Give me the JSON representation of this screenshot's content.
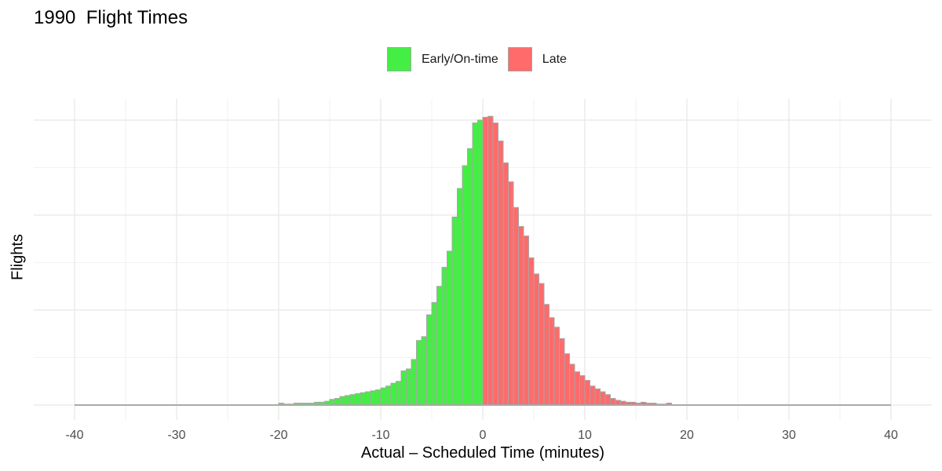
{
  "chart_data": {
    "type": "bar",
    "title": "1990  Flight Times",
    "xlabel": "Actual – Scheduled Time (minutes)",
    "ylabel": "Flights",
    "xlim": [
      -44,
      44
    ],
    "ylim": [
      0,
      3.05
    ],
    "x_ticks": [
      -40,
      -30,
      -20,
      -10,
      0,
      10,
      20,
      30,
      40
    ],
    "x_tick_labels": [
      "-40",
      "-30",
      "-20",
      "-10",
      "0",
      "10",
      "20",
      "30",
      "40"
    ],
    "y_axis_labels_shown": false,
    "grid": true,
    "bin_width": 0.5,
    "legend": {
      "position": "top",
      "entries": [
        {
          "label": "Early/On-time",
          "color": "#44ee44"
        },
        {
          "label": "Late",
          "color": "#ff6b6b"
        }
      ]
    },
    "series": [
      {
        "name": "Early/On-time",
        "color": "#44ee44",
        "x": [
          -20,
          -19.5,
          -19,
          -18.5,
          -18,
          -17.5,
          -17,
          -16.5,
          -16,
          -15.5,
          -15,
          -14.5,
          -14,
          -13.5,
          -13,
          -12.5,
          -12,
          -11.5,
          -11,
          -10.5,
          -10,
          -9.5,
          -9,
          -8.5,
          -8,
          -7.5,
          -7,
          -6.5,
          -6,
          -5.5,
          -5,
          -4.5,
          -4,
          -3.5,
          -3,
          -2.5,
          -2,
          -1.5,
          -1,
          -0.5
        ],
        "values": [
          0.02,
          0.01,
          0.01,
          0.02,
          0.02,
          0.02,
          0.02,
          0.03,
          0.03,
          0.04,
          0.06,
          0.07,
          0.09,
          0.1,
          0.11,
          0.12,
          0.13,
          0.14,
          0.15,
          0.16,
          0.18,
          0.2,
          0.23,
          0.25,
          0.36,
          0.38,
          0.48,
          0.68,
          0.72,
          0.95,
          1.08,
          1.25,
          1.45,
          1.62,
          1.98,
          2.28,
          2.52,
          2.7,
          2.97,
          3.0
        ]
      },
      {
        "name": "Late",
        "color": "#ff6b6b",
        "x": [
          0,
          0.5,
          1,
          1.5,
          2,
          2.5,
          3,
          3.5,
          4,
          4.5,
          5,
          5.5,
          6,
          6.5,
          7,
          7.5,
          8,
          8.5,
          9,
          9.5,
          10,
          10.5,
          11,
          11.5,
          12,
          12.5,
          13,
          13.5,
          14,
          14.5,
          15,
          15.5,
          16,
          16.5,
          17,
          17.5,
          18
        ],
        "values": [
          3.03,
          3.04,
          2.97,
          2.78,
          2.55,
          2.35,
          2.08,
          1.88,
          1.78,
          1.55,
          1.38,
          1.28,
          1.06,
          0.92,
          0.82,
          0.7,
          0.54,
          0.43,
          0.35,
          0.31,
          0.26,
          0.2,
          0.17,
          0.14,
          0.11,
          0.07,
          0.05,
          0.04,
          0.03,
          0.03,
          0.02,
          0.03,
          0.02,
          0.02,
          0.01,
          0.01,
          0.02
        ]
      }
    ]
  }
}
